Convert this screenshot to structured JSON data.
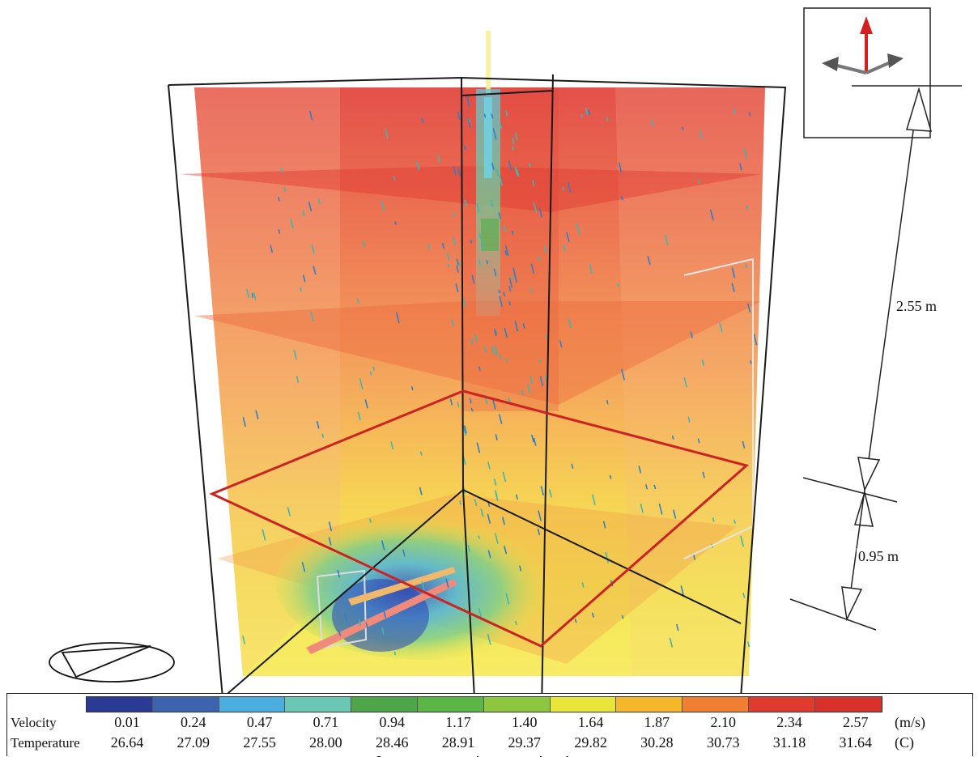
{
  "dimensions": {
    "upper": "2.55 m",
    "lower": "0.95 m"
  },
  "legend": {
    "velocity_label": "Velocity",
    "temperature_label": "Temperature",
    "velocity_unit": "(m/s)",
    "temperature_unit": "(C)",
    "velocity_values": [
      "0.01",
      "0.24",
      "0.47",
      "0.71",
      "0.94",
      "1.17",
      "1.40",
      "1.64",
      "1.87",
      "2.10",
      "2.34",
      "2.57"
    ],
    "temperature_values": [
      "26.64",
      "27.09",
      "27.55",
      "28.00",
      "28.46",
      "28.91",
      "29.37",
      "29.82",
      "30.28",
      "30.73",
      "31.18",
      "31.64"
    ],
    "colors": [
      "#2b3a93",
      "#3c63ad",
      "#4aaede",
      "#6bc6b3",
      "#4ea54a",
      "#5cb547",
      "#8dc63f",
      "#e9e63a",
      "#f5b629",
      "#ee7f33",
      "#df3b2f",
      "#d8312b"
    ]
  },
  "colors": {
    "red_top": "#e0493a",
    "orange_mid": "#f29a4c",
    "yellow_low": "#f2d64a",
    "plane_outline": "#cc2222",
    "box_edge": "#1a1a1a"
  }
}
